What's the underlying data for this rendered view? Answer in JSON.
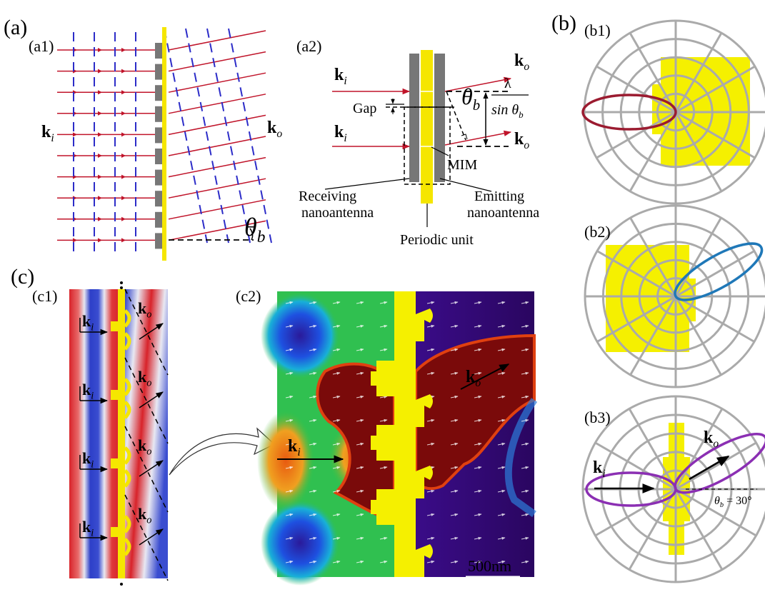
{
  "a": {
    "label": "(a)"
  },
  "a1": {
    "label": "(a1)",
    "ki": {
      "base": "k",
      "sub": "i"
    },
    "ko": {
      "base": "k",
      "sub": "o"
    },
    "theta": {
      "base": "θ",
      "sub": "b"
    }
  },
  "a2": {
    "label": "(a2)",
    "ki": {
      "base": "k",
      "sub": "i"
    },
    "ko": {
      "base": "k",
      "sub": "o"
    },
    "gap": "Gap",
    "theta": {
      "base": "θ",
      "sub": "b"
    },
    "numerator": "λ",
    "denominator": {
      "base": "sin θ",
      "sub": "b"
    },
    "mim": "MIM",
    "receiving": [
      "Receiving",
      "nanoantenna"
    ],
    "emitting": [
      "Emitting",
      "nanoantenna"
    ],
    "periodic": "Periodic unit"
  },
  "b": {
    "label": "(b)"
  },
  "b1": {
    "label": "(b1)"
  },
  "b2": {
    "label": "(b2)"
  },
  "b3": {
    "label": "(b3)",
    "ki": {
      "base": "k",
      "sub": "i"
    },
    "ko": {
      "base": "k",
      "sub": "o"
    },
    "angle": {
      "base": "θ",
      "sub": "b",
      "rest": " = 30°"
    }
  },
  "c": {
    "label": "(c)"
  },
  "c1": {
    "label": "(c1)",
    "ki": {
      "base": "k",
      "sub": "i"
    },
    "ko": {
      "base": "k",
      "sub": "o"
    }
  },
  "c2": {
    "label": "(c2)",
    "ki": {
      "base": "k",
      "sub": "i"
    },
    "ko": {
      "base": "k",
      "sub": "o"
    },
    "scale": "500nm"
  }
}
